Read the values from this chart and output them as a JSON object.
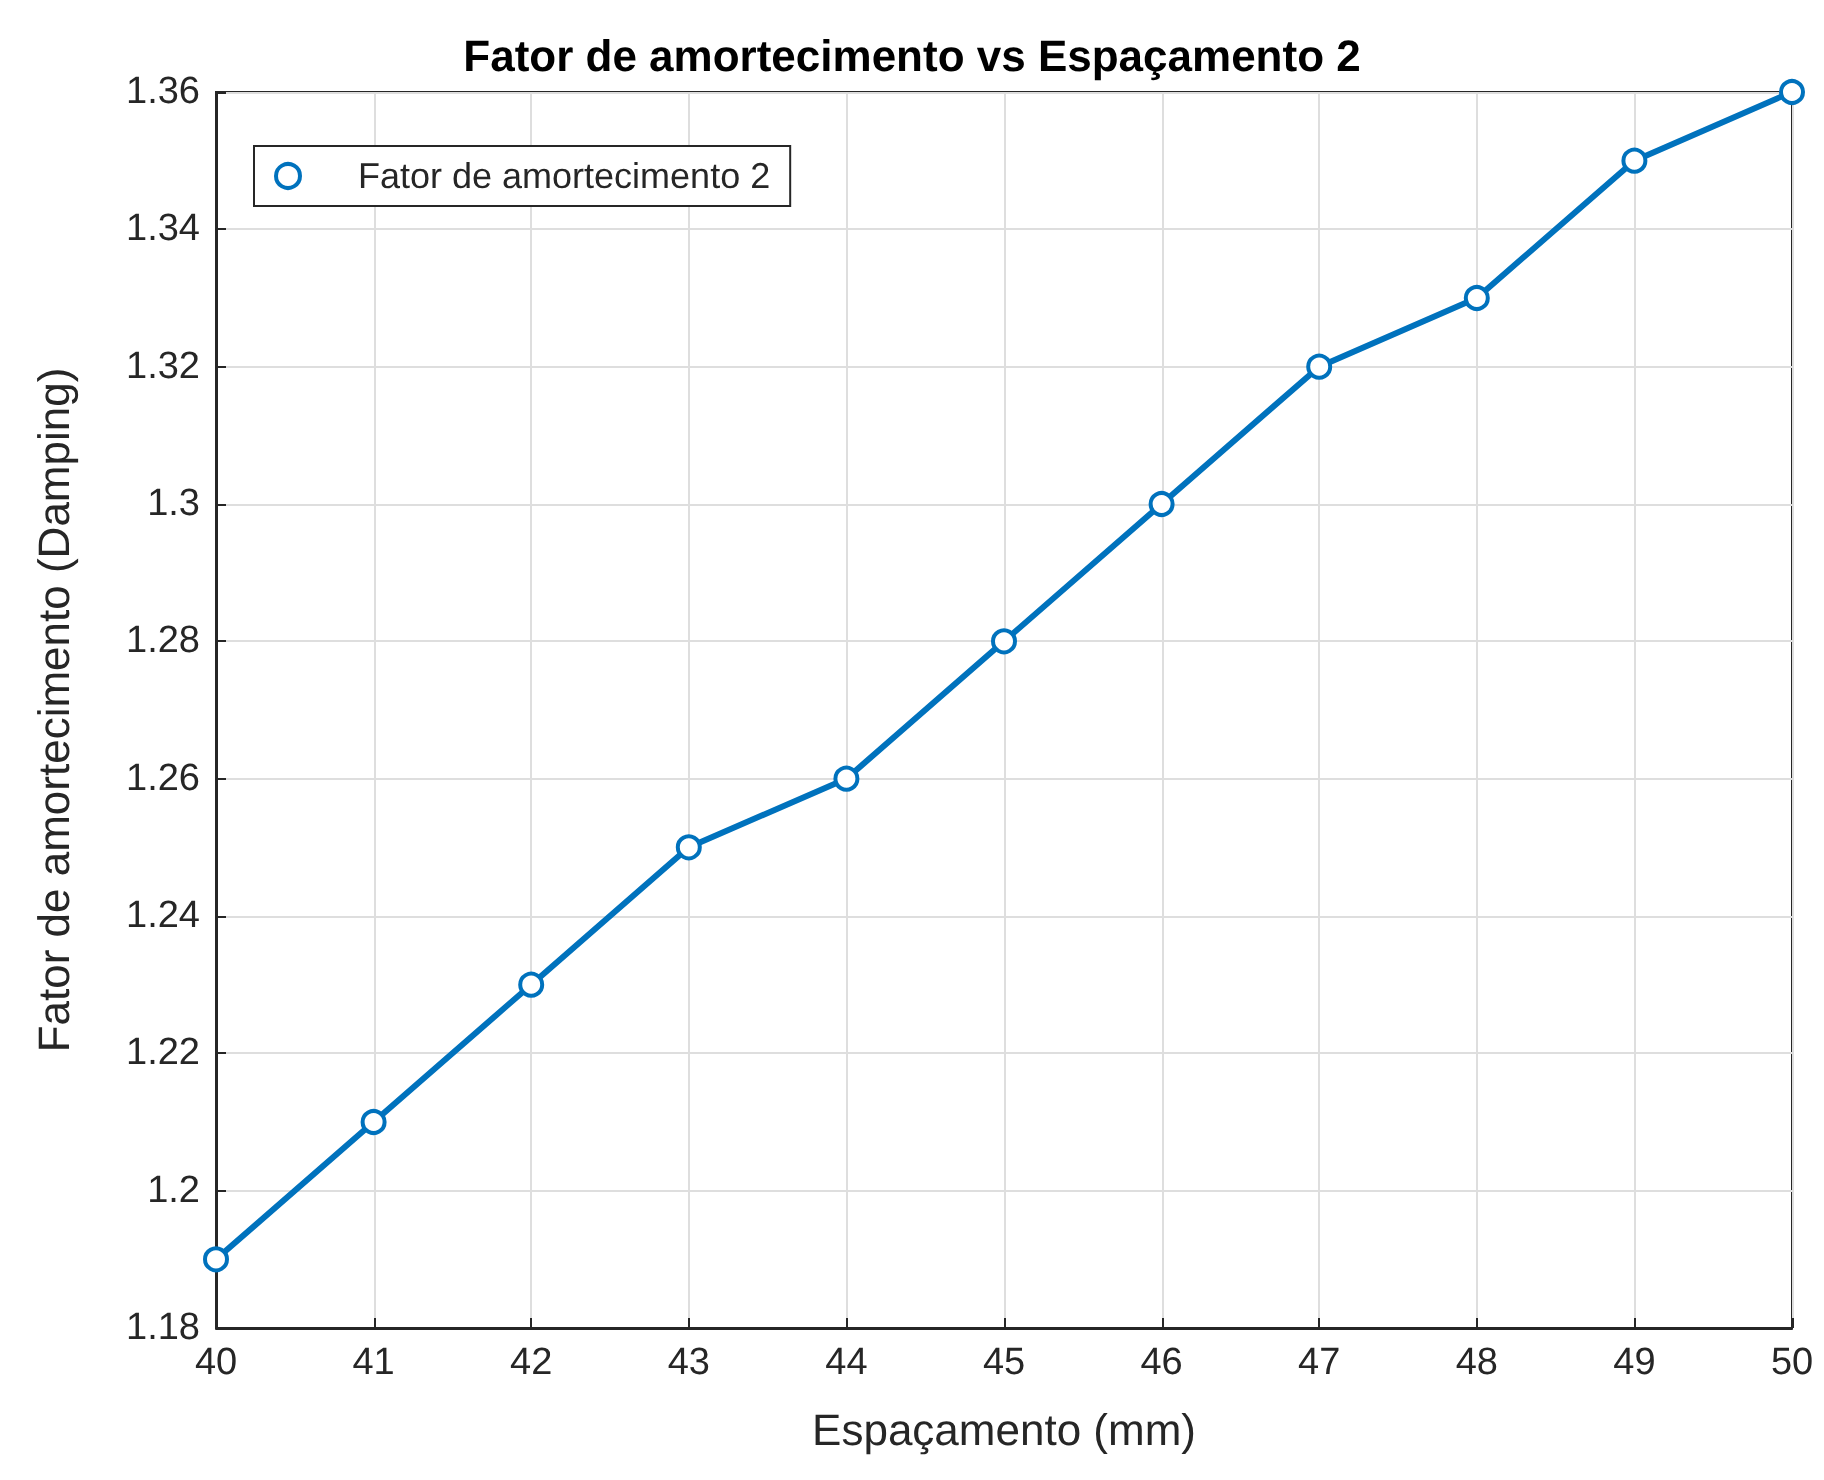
{
  "chart_data": {
    "type": "line",
    "title": "Fator de amortecimento vs Espaçamento 2",
    "xlabel": "Espaçamento (mm)",
    "ylabel": "Fator de amortecimento (Damping)",
    "x": [
      40,
      41,
      42,
      43,
      44,
      45,
      46,
      47,
      48,
      49,
      50
    ],
    "series": [
      {
        "name": "Fator de amortecimento 2",
        "color": "#0072bd",
        "values": [
          1.19,
          1.21,
          1.23,
          1.25,
          1.26,
          1.28,
          1.3,
          1.32,
          1.33,
          1.35,
          1.36
        ]
      }
    ],
    "xlim": [
      40,
      50
    ],
    "xticks": [
      40,
      41,
      42,
      43,
      44,
      45,
      46,
      47,
      48,
      49,
      50
    ],
    "ylim": [
      1.18,
      1.36
    ],
    "yticks": [
      1.18,
      1.2,
      1.22,
      1.24,
      1.26,
      1.28,
      1.3,
      1.32,
      1.34,
      1.36
    ],
    "grid": true,
    "legend": "top left",
    "marker": "circle",
    "line_style": "solid"
  }
}
